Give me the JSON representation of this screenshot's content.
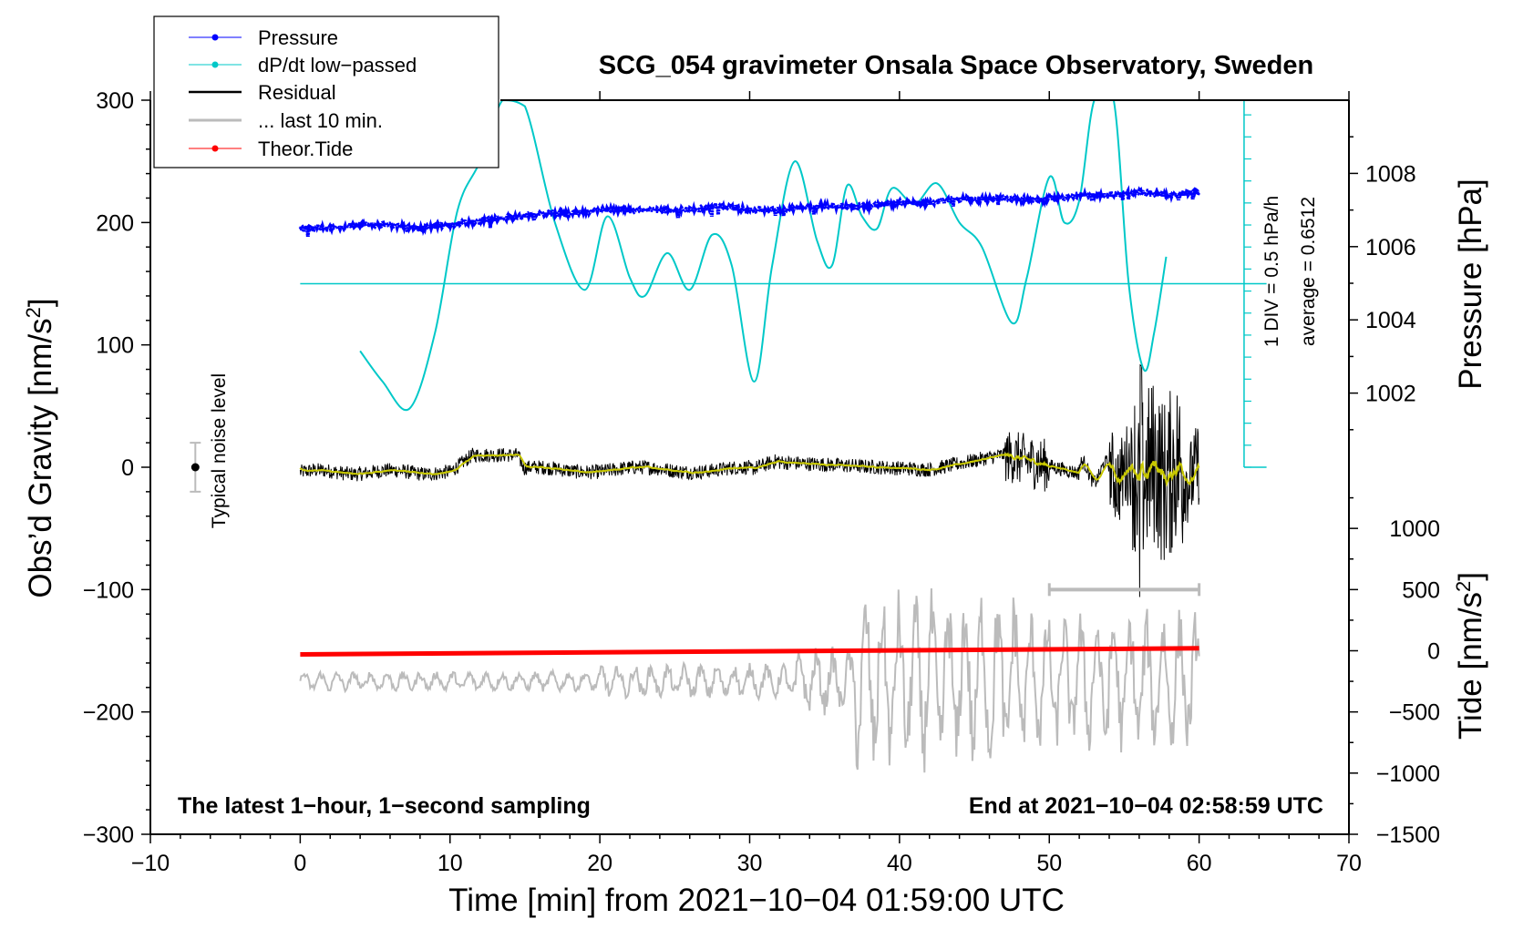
{
  "chart_data": {
    "type": "line",
    "title": "SCG_054 gravimeter Onsala Space Observatory, Sweden",
    "xlabel": "Time [min] from 2021−10−04 01:59:00 UTC",
    "ylabel": "Obs’d Gravity [nm/s",
    "ylabel_sup": "2",
    "ylabel_close": "]",
    "xlim": [
      -10,
      70
    ],
    "ylim": [
      -300,
      300
    ],
    "x_ticks": [
      -10,
      0,
      10,
      20,
      30,
      40,
      50,
      60,
      70
    ],
    "x_tick_labels": [
      "−10",
      "0",
      "10",
      "20",
      "30",
      "40",
      "50",
      "60",
      "70"
    ],
    "y_ticks": [
      -300,
      -200,
      -100,
      0,
      100,
      200,
      300
    ],
    "y_tick_labels": [
      "−300",
      "−200",
      "−100",
      "0",
      "100",
      "200",
      "300"
    ],
    "pressure_axis": {
      "label": "Pressure [hPa]",
      "ticks": [
        1002,
        1004,
        1006,
        1008
      ],
      "tick_labels": [
        "1002",
        "1004",
        "1006",
        "1008"
      ],
      "range": [
        1000,
        1010
      ]
    },
    "tide_axis": {
      "label": "Tide [nm/s",
      "label_sup": "2",
      "label_close": "]",
      "ticks": [
        -1500,
        -1000,
        -500,
        0,
        500,
        1000
      ],
      "tick_labels": [
        "−1500",
        "−1000",
        "−500",
        "0",
        "500",
        "1000"
      ],
      "range": [
        -1500,
        1500
      ]
    },
    "legend": {
      "position": "top-left",
      "entries": [
        {
          "label": "Pressure",
          "color": "#0000ff",
          "marker": true
        },
        {
          "label": "dP/dt low−passed",
          "color": "#00c8c8",
          "marker": true
        },
        {
          "label": "Residual",
          "color": "#000000",
          "marker": false
        },
        {
          "label": "... last 10 min.",
          "color": "#bbbbbb",
          "marker": false
        },
        {
          "label": "Theor.Tide",
          "color": "#ff0000",
          "marker": true
        }
      ]
    },
    "annotations": {
      "noise_label": "Typical noise level",
      "div_label": "1 DIV = 0.5 hPa/h",
      "average_label": "average = 0.6512",
      "bottom_left": "The latest 1−hour, 1−second sampling",
      "bottom_right": "End at 2021−10−04 02:58:59 UTC"
    },
    "noise_bar": {
      "x": -7,
      "y": 0,
      "err": 20
    },
    "span_bar": {
      "x_start": 50,
      "x_end": 60,
      "y": -100
    },
    "dpdt_baseline_y": 150,
    "dpdt_axis": {
      "x": 63,
      "y_bottom": 0,
      "y_top": 300,
      "tick_step": 18
    },
    "series": [
      {
        "name": "Pressure",
        "units": "hPa",
        "color": "#0000ff",
        "x": [
          0,
          2,
          4,
          6,
          8,
          10,
          12,
          14,
          16,
          18,
          20,
          22,
          24,
          26,
          28,
          30,
          32,
          34,
          36,
          38,
          40,
          42,
          44,
          46,
          48,
          50,
          52,
          54,
          56,
          58,
          60
        ],
        "values": [
          1006.5,
          1006.5,
          1006.6,
          1006.6,
          1006.5,
          1006.6,
          1006.7,
          1006.8,
          1006.9,
          1006.9,
          1007.0,
          1007.0,
          1007.0,
          1007.0,
          1007.1,
          1007.0,
          1007.0,
          1007.1,
          1007.1,
          1007.1,
          1007.2,
          1007.2,
          1007.3,
          1007.3,
          1007.3,
          1007.3,
          1007.4,
          1007.4,
          1007.5,
          1007.4,
          1007.5
        ]
      },
      {
        "name": "dP/dt low-passed",
        "color": "#00c8c8",
        "x": [
          4.0,
          5.5,
          7.3,
          9.0,
          10.5,
          12.0,
          13.5,
          15.0,
          17.0,
          19.0,
          20.5,
          22.0,
          23.0,
          24.5,
          26.0,
          27.5,
          28.8,
          30.3,
          31.5,
          33.0,
          34.5,
          35.5,
          36.5,
          37.5,
          38.5,
          39.5,
          41.0,
          42.5,
          44.0,
          45.5,
          47.5,
          48.5,
          50.0,
          51.0,
          52.0,
          53.0,
          54.3,
          55.3,
          56.3,
          57.0,
          57.8
        ],
        "values": [
          95,
          70,
          48,
          110,
          210,
          250,
          300,
          295,
          200,
          145,
          205,
          155,
          140,
          175,
          145,
          190,
          165,
          70,
          165,
          250,
          185,
          165,
          230,
          205,
          195,
          228,
          215,
          232,
          200,
          180,
          118,
          155,
          237,
          200,
          218,
          300,
          300,
          150,
          80,
          110,
          172
        ]
      },
      {
        "name": "Theor.Tide",
        "units": "nm/s2",
        "color": "#ff0000",
        "x": [
          0,
          60
        ],
        "values": [
          -153,
          -148
        ]
      }
    ]
  }
}
